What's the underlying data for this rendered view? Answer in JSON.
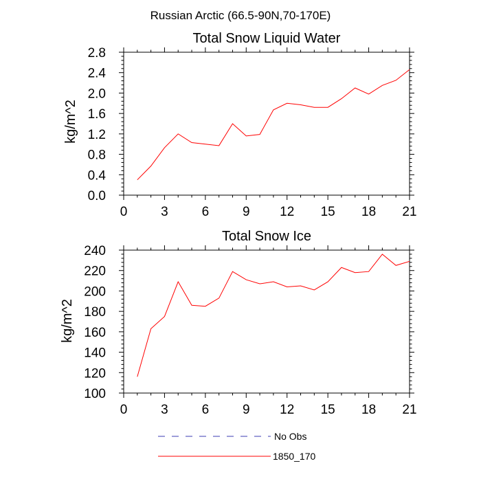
{
  "figure": {
    "suptitle": "Russian Arctic (66.5-90N,70-170E)"
  },
  "legend": {
    "entries": [
      {
        "label": "No Obs",
        "color": "#3b3bb3",
        "dashed": true
      },
      {
        "label": "1850_170",
        "color": "#ff0000",
        "dashed": false
      }
    ]
  },
  "chart_data": [
    {
      "type": "line",
      "title": "Total Snow Liquid Water",
      "xlabel": "",
      "ylabel": "kg/m^2",
      "xlim": [
        0,
        21
      ],
      "ylim": [
        0.0,
        2.8
      ],
      "xticks": [
        0,
        3,
        6,
        9,
        12,
        15,
        18,
        21
      ],
      "yticks": [
        0.0,
        0.4,
        0.8,
        1.2,
        1.6,
        2.0,
        2.4,
        2.8
      ],
      "ytick_labels": [
        "0.0",
        "0.4",
        "0.8",
        "1.2",
        "1.6",
        "2.0",
        "2.4",
        "2.8"
      ],
      "yminor_step": 0.08,
      "series": [
        {
          "name": "1850_170",
          "color": "#ff0000",
          "x": [
            1,
            2,
            3,
            4,
            5,
            6,
            7,
            8,
            9,
            10,
            11,
            12,
            13,
            14,
            15,
            16,
            17,
            18,
            19,
            20,
            21
          ],
          "values": [
            0.3,
            0.57,
            0.93,
            1.2,
            1.03,
            1.0,
            0.97,
            1.4,
            1.16,
            1.19,
            1.67,
            1.8,
            1.77,
            1.72,
            1.72,
            1.89,
            2.1,
            1.98,
            2.15,
            2.25,
            2.46
          ]
        }
      ]
    },
    {
      "type": "line",
      "title": "Total Snow Ice",
      "xlabel": "",
      "ylabel": "kg/m^2",
      "xlim": [
        0,
        21
      ],
      "ylim": [
        100,
        240
      ],
      "xticks": [
        0,
        3,
        6,
        9,
        12,
        15,
        18,
        21
      ],
      "yticks": [
        100,
        120,
        140,
        160,
        180,
        200,
        220,
        240
      ],
      "ytick_labels": [
        "100",
        "120",
        "140",
        "160",
        "180",
        "200",
        "220",
        "240"
      ],
      "yminor_step": 4,
      "series": [
        {
          "name": "1850_170",
          "color": "#ff0000",
          "x": [
            1,
            2,
            3,
            4,
            5,
            6,
            7,
            8,
            9,
            10,
            11,
            12,
            13,
            14,
            15,
            16,
            17,
            18,
            19,
            20,
            21
          ],
          "values": [
            116,
            163,
            175,
            209,
            186,
            185,
            193,
            219,
            211,
            207,
            209,
            204,
            205,
            201,
            209,
            223,
            218,
            219,
            236,
            225,
            229
          ]
        }
      ]
    }
  ]
}
